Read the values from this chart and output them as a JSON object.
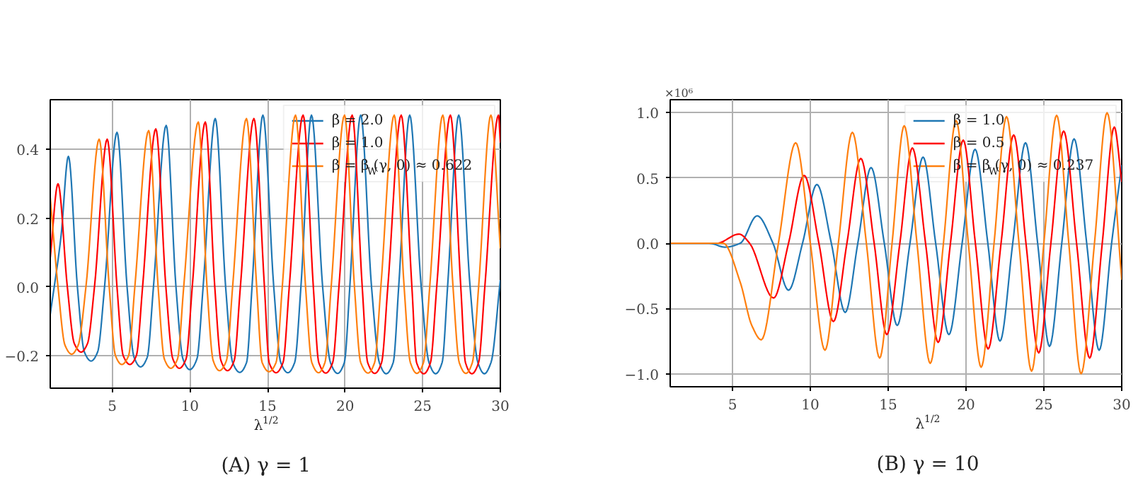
{
  "chart_data": [
    {
      "type": "line",
      "title": "(A) γ = 1",
      "xlabel": "λ$^{1/2}$",
      "xlim": [
        1,
        30
      ],
      "xticks": [
        5,
        10,
        15,
        20,
        25,
        30
      ],
      "ylim": [
        -0.295,
        0.545
      ],
      "yticks": [
        {
          "value": -0.2,
          "label": "−0.2"
        },
        {
          "value": 0,
          "label": "0.0"
        },
        {
          "value": 0.2,
          "label": "0.2"
        },
        {
          "value": 0.4,
          "label": "0.4"
        }
      ],
      "grid": true,
      "legend": "top right",
      "marker": "none",
      "line_style": "solid",
      "series": [
        {
          "name": "β = 2.0",
          "color": "#1f77b4",
          "x": [
            1.0,
            1.7,
            2.17,
            2.75,
            3.2,
            3.63,
            4.05,
            4.5,
            5.3,
            5.95,
            6.4,
            6.82,
            7.25,
            7.65,
            8.47,
            9.1,
            9.55,
            9.99,
            10.45,
            10.85,
            11.63,
            12.3,
            12.75,
            13.21,
            13.65,
            14.0,
            14.7,
            15.4,
            15.85,
            16.31,
            16.75,
            17.15,
            17.83,
            18.55,
            19.05,
            19.51,
            19.95,
            20.3,
            21.0,
            21.7,
            22.2,
            22.64,
            23.1,
            23.45,
            24.16,
            24.9,
            25.4,
            25.83,
            26.25,
            26.6,
            27.32,
            28.05,
            28.55,
            28.97,
            29.4,
            30.0
          ],
          "values": [
            -0.08,
            0.15,
            0.38,
            0.0,
            -0.19,
            -0.216,
            -0.19,
            0.0,
            0.45,
            0.0,
            -0.205,
            -0.233,
            -0.205,
            0.0,
            0.47,
            0.0,
            -0.21,
            -0.241,
            -0.21,
            0.0,
            0.49,
            0.0,
            -0.22,
            -0.249,
            -0.22,
            0.0,
            0.5,
            0.0,
            -0.22,
            -0.25,
            -0.22,
            0.0,
            0.5,
            0.0,
            -0.22,
            -0.252,
            -0.22,
            0.0,
            0.5,
            0.0,
            -0.22,
            -0.253,
            -0.22,
            0.0,
            0.5,
            0.0,
            -0.22,
            -0.253,
            -0.22,
            0.0,
            0.5,
            0.0,
            -0.22,
            -0.253,
            -0.22,
            0.02
          ]
        },
        {
          "name": "β = 1.0",
          "color": "#ff0000",
          "x": [
            1.0,
            1.5,
            2.1,
            2.55,
            2.99,
            3.4,
            3.85,
            4.67,
            5.3,
            5.7,
            6.13,
            6.55,
            6.95,
            7.8,
            8.45,
            8.9,
            9.32,
            9.75,
            10.15,
            10.99,
            11.6,
            12.0,
            12.42,
            12.85,
            13.25,
            14.12,
            14.8,
            15.1,
            15.55,
            16.0,
            16.4,
            17.29,
            17.95,
            18.3,
            18.75,
            19.2,
            19.6,
            20.45,
            21.1,
            21.45,
            21.91,
            22.35,
            22.75,
            23.61,
            24.3,
            24.6,
            25.07,
            25.5,
            25.9,
            26.78,
            27.45,
            27.75,
            28.17,
            28.6,
            29.0,
            29.88,
            30.0
          ],
          "values": [
            0.085,
            0.3,
            0.0,
            -0.165,
            -0.19,
            -0.165,
            0.0,
            0.43,
            0.0,
            -0.2,
            -0.226,
            -0.2,
            0.0,
            0.46,
            0.0,
            -0.21,
            -0.237,
            -0.21,
            0.0,
            0.48,
            0.0,
            -0.215,
            -0.244,
            -0.215,
            0.0,
            0.49,
            0.0,
            -0.22,
            -0.25,
            -0.22,
            0.0,
            0.5,
            0.0,
            -0.22,
            -0.251,
            -0.22,
            0.0,
            0.5,
            0.0,
            -0.22,
            -0.252,
            -0.22,
            0.0,
            0.5,
            0.0,
            -0.22,
            -0.253,
            -0.22,
            0.0,
            0.5,
            0.0,
            -0.22,
            -0.253,
            -0.22,
            0.0,
            0.5,
            0.42
          ]
        },
        {
          "name": "β = β$_{W}$(γ, 0) ≈ 0.622",
          "color": "#ff7f0e",
          "x": [
            1.0,
            1.5,
            1.95,
            2.38,
            2.8,
            3.3,
            4.15,
            4.8,
            5.2,
            5.61,
            6.05,
            6.45,
            7.34,
            7.95,
            8.35,
            8.77,
            9.2,
            9.6,
            10.54,
            11.1,
            11.5,
            11.9,
            12.35,
            12.75,
            13.64,
            14.3,
            14.65,
            15.1,
            15.55,
            15.95,
            16.8,
            17.45,
            17.85,
            18.29,
            18.7,
            19.1,
            19.96,
            20.6,
            21.0,
            21.48,
            21.9,
            22.3,
            23.16,
            23.8,
            24.2,
            24.62,
            25.05,
            25.45,
            26.29,
            26.95,
            27.35,
            27.78,
            28.2,
            28.6,
            29.39,
            30.0
          ],
          "values": [
            0.26,
            0.0,
            -0.17,
            -0.196,
            -0.17,
            0.0,
            0.43,
            0.0,
            -0.2,
            -0.226,
            -0.2,
            0.0,
            0.455,
            0.0,
            -0.21,
            -0.237,
            -0.21,
            0.0,
            0.48,
            0.0,
            -0.215,
            -0.244,
            -0.215,
            0.0,
            0.49,
            0.0,
            -0.22,
            -0.247,
            -0.22,
            0.0,
            0.5,
            0.0,
            -0.22,
            -0.25,
            -0.22,
            0.0,
            0.5,
            0.0,
            -0.22,
            -0.251,
            -0.22,
            0.0,
            0.5,
            0.0,
            -0.22,
            -0.252,
            -0.22,
            0.0,
            0.5,
            0.0,
            -0.22,
            -0.252,
            -0.22,
            0.0,
            0.5,
            0.112
          ]
        }
      ]
    },
    {
      "type": "line",
      "title": "(B) γ = 10",
      "xlabel": "λ$^{1/2}$",
      "annotations": [
        "×10⁶"
      ],
      "xlim": [
        1,
        30
      ],
      "xticks": [
        5,
        10,
        15,
        20,
        25,
        30
      ],
      "ylim": [
        -1.1,
        1.1
      ],
      "yticks": [
        {
          "value": -1,
          "label": "−1.0"
        },
        {
          "value": -0.5,
          "label": "−0.5"
        },
        {
          "value": 0,
          "label": "0.0"
        },
        {
          "value": 0.5,
          "label": "0.5"
        },
        {
          "value": 1,
          "label": "1.0"
        }
      ],
      "grid": true,
      "legend": "top right",
      "marker": "none",
      "line_style": "solid",
      "series": [
        {
          "name": "β = 1.0",
          "color": "#1f77b4",
          "x": [
            1,
            3.5,
            4.52,
            5.5,
            6.58,
            7.6,
            8.6,
            9.5,
            10.42,
            11.35,
            12.24,
            13.05,
            13.9,
            14.75,
            15.58,
            16.4,
            17.24,
            18.05,
            18.9,
            19.75,
            20.58,
            21.4,
            22.18,
            23.0,
            23.82,
            24.6,
            25.36,
            26.15,
            26.94,
            27.75,
            28.55,
            29.35,
            30
          ],
          "values": [
            0,
            0,
            -0.03,
            0,
            0.21,
            0,
            -0.36,
            0,
            0.45,
            0,
            -0.53,
            0,
            0.58,
            0,
            -0.63,
            0,
            0.66,
            0,
            -0.7,
            0,
            0.72,
            0,
            -0.75,
            0,
            0.77,
            0,
            -0.79,
            0,
            0.8,
            0,
            -0.82,
            0,
            0.6
          ]
        },
        {
          "name": "β = 0.5",
          "color": "#ff0000",
          "x": [
            1,
            4.0,
            5.42,
            6.1,
            7.64,
            8.6,
            9.6,
            10.55,
            11.48,
            12.35,
            13.24,
            14.1,
            14.91,
            15.75,
            16.55,
            17.4,
            18.21,
            19.0,
            19.82,
            20.6,
            21.42,
            22.25,
            23.06,
            23.85,
            24.67,
            25.45,
            26.27,
            27.1,
            27.94,
            28.75,
            29.52,
            30
          ],
          "values": [
            0,
            0,
            0.07,
            0,
            -0.42,
            0,
            0.52,
            0,
            -0.6,
            0,
            0.65,
            0,
            -0.7,
            0,
            0.73,
            0,
            -0.76,
            0,
            0.79,
            0,
            -0.81,
            0,
            0.83,
            0,
            -0.84,
            0,
            0.86,
            0,
            -0.88,
            0,
            0.89,
            0.47
          ]
        },
        {
          "name": "β = β$_{W}$(γ, 0) ≈ 0.237",
          "color": "#ff7f0e",
          "x": [
            1,
            4.4,
            5.5,
            6.24,
            6.85,
            7.95,
            9.06,
            10.0,
            10.94,
            11.8,
            12.7,
            13.6,
            14.45,
            15.25,
            16.03,
            16.85,
            17.7,
            18.55,
            19.36,
            20.15,
            20.97,
            21.8,
            22.6,
            23.4,
            24.21,
            25.0,
            25.82,
            26.6,
            27.39,
            28.25,
            29.06,
            30
          ],
          "values": [
            0,
            0,
            -0.3,
            -0.63,
            -0.74,
            0,
            0.77,
            0,
            -0.82,
            0,
            0.85,
            0,
            -0.88,
            0,
            0.9,
            0,
            -0.92,
            0,
            0.94,
            0,
            -0.95,
            0,
            0.97,
            0,
            -0.98,
            0,
            0.98,
            0,
            -1.0,
            0,
            1.0,
            -0.28
          ]
        }
      ]
    }
  ]
}
